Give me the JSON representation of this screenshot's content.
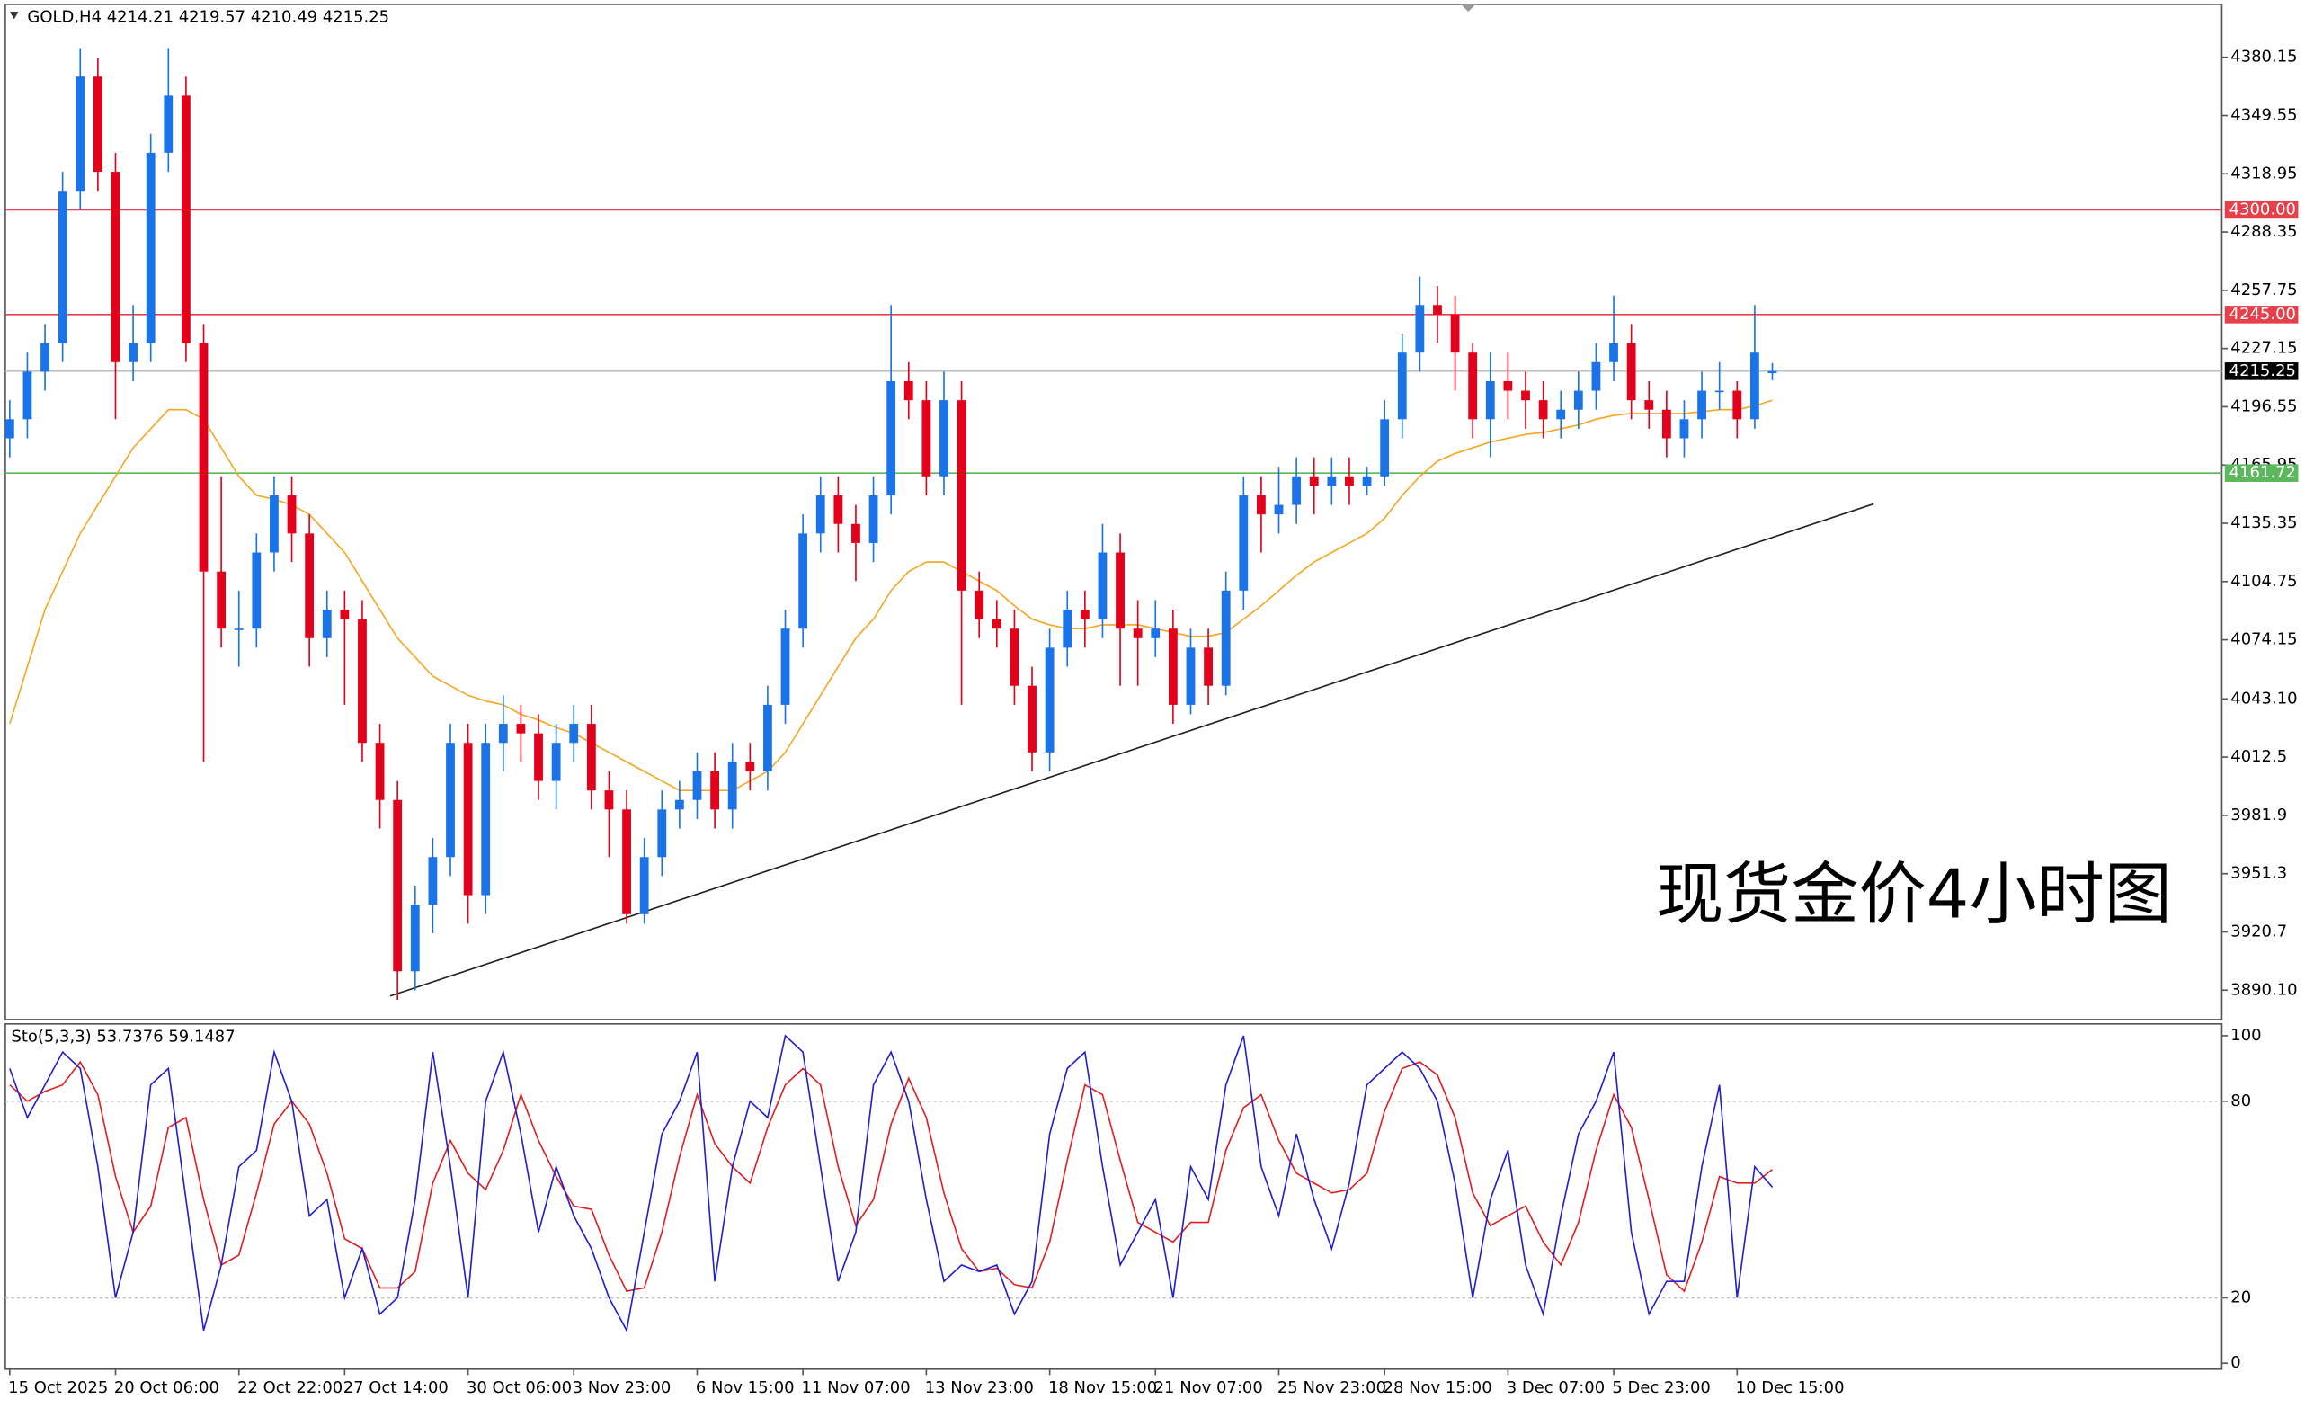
{
  "chart_data": [
    {
      "type": "candlestick",
      "title": "GOLD,H4 4214.21 4219.57 4210.49 4215.25",
      "annotation": "现货金价4小时图",
      "categories": [
        "15 Oct 2025",
        null,
        null,
        null,
        null,
        null,
        "20 Oct 06:00",
        null,
        null,
        null,
        null,
        null,
        null,
        "22 Oct 22:00",
        null,
        null,
        null,
        null,
        null,
        "27 Oct 14:00",
        null,
        null,
        null,
        null,
        null,
        null,
        "30 Oct 06:00",
        null,
        null,
        null,
        null,
        null,
        "3 Nov 23:00",
        null,
        null,
        null,
        null,
        null,
        null,
        "6 Nov 15:00",
        null,
        null,
        null,
        null,
        null,
        "11 Nov 07:00",
        null,
        null,
        null,
        null,
        null,
        null,
        "13 Nov 23:00",
        null,
        null,
        null,
        null,
        null,
        null,
        "18 Nov 15:00",
        null,
        null,
        null,
        null,
        null,
        "21 Nov 07:00",
        null,
        null,
        null,
        null,
        null,
        null,
        "25 Nov 23:00",
        null,
        null,
        null,
        null,
        null,
        "28 Nov 15:00",
        null,
        null,
        null,
        null,
        null,
        null,
        "3 Dec 07:00",
        null,
        null,
        null,
        null,
        null,
        "5 Dec 23:00",
        null,
        null,
        null,
        null,
        null,
        null,
        "10 Dec 15:00",
        null,
        null
      ],
      "open": [
        4180,
        4190,
        4215,
        4230,
        4310,
        4370,
        4320,
        4220,
        4230,
        4330,
        4360,
        4230,
        4110,
        4080,
        4080,
        4120,
        4150,
        4130,
        4075,
        4090,
        4085,
        4020,
        3990,
        3900,
        3935,
        3960,
        4020,
        3940,
        4020,
        4030,
        4025,
        4000,
        4020,
        4030,
        3995,
        3985,
        3930,
        3960,
        3985,
        3990,
        4005,
        3985,
        4010,
        4005,
        4040,
        4080,
        4130,
        4150,
        4135,
        4125,
        4150,
        4210,
        4200,
        4160,
        4200,
        4100,
        4085,
        4080,
        4050,
        4015,
        4070,
        4090,
        4085,
        4120,
        4080,
        4075,
        4080,
        4040,
        4070,
        4050,
        4100,
        4150,
        4140,
        4145,
        4160,
        4155,
        4160,
        4155,
        4160,
        4190,
        4225,
        4250,
        4245,
        4225,
        4190,
        4210,
        4205,
        4200,
        4190,
        4195,
        4205,
        4220,
        4230,
        4200,
        4195,
        4180,
        4190,
        4205,
        4205,
        4190,
        4214.21
      ],
      "high": [
        4200,
        4225,
        4240,
        4320,
        4385,
        4380,
        4330,
        4250,
        4340,
        4385,
        4370,
        4240,
        4160,
        4100,
        4130,
        4160,
        4160,
        4140,
        4100,
        4100,
        4095,
        4030,
        4000,
        3945,
        3970,
        4030,
        4030,
        4030,
        4045,
        4040,
        4035,
        4030,
        4040,
        4040,
        4005,
        3995,
        3970,
        3995,
        4000,
        4015,
        4015,
        4020,
        4020,
        4050,
        4090,
        4140,
        4160,
        4160,
        4145,
        4160,
        4250,
        4220,
        4210,
        4215,
        4210,
        4110,
        4095,
        4090,
        4060,
        4080,
        4100,
        4100,
        4135,
        4130,
        4095,
        4095,
        4090,
        4080,
        4080,
        4110,
        4160,
        4160,
        4165,
        4170,
        4170,
        4170,
        4170,
        4165,
        4200,
        4235,
        4265,
        4260,
        4255,
        4230,
        4225,
        4225,
        4215,
        4210,
        4205,
        4215,
        4230,
        4255,
        4240,
        4210,
        4205,
        4200,
        4215,
        4220,
        4210,
        4250,
        4219.57
      ],
      "low": [
        4170,
        4180,
        4205,
        4220,
        4300,
        4310,
        4190,
        4210,
        4220,
        4320,
        4220,
        4010,
        4070,
        4060,
        4070,
        4110,
        4115,
        4060,
        4065,
        4040,
        4010,
        3975,
        3885,
        3890,
        3920,
        3950,
        3925,
        3930,
        4005,
        4010,
        3990,
        3985,
        4010,
        3985,
        3960,
        3925,
        3925,
        3950,
        3975,
        3980,
        3975,
        3975,
        3995,
        3995,
        4030,
        4070,
        4120,
        4120,
        4105,
        4115,
        4140,
        4190,
        4150,
        4150,
        4040,
        4075,
        4070,
        4040,
        4005,
        4005,
        4060,
        4070,
        4075,
        4050,
        4050,
        4065,
        4030,
        4035,
        4040,
        4045,
        4090,
        4120,
        4130,
        4135,
        4140,
        4145,
        4145,
        4150,
        4155,
        4180,
        4215,
        4230,
        4205,
        4180,
        4170,
        4190,
        4185,
        4180,
        4180,
        4185,
        4195,
        4210,
        4190,
        4185,
        4170,
        4170,
        4180,
        4195,
        4180,
        4185,
        4210.49
      ],
      "close": [
        4190,
        4215,
        4230,
        4310,
        4370,
        4320,
        4220,
        4230,
        4330,
        4360,
        4230,
        4110,
        4080,
        4080,
        4120,
        4150,
        4130,
        4075,
        4090,
        4085,
        4020,
        3990,
        3900,
        3935,
        3960,
        4020,
        3940,
        4020,
        4030,
        4025,
        4000,
        4020,
        4030,
        3995,
        3985,
        3930,
        3960,
        3985,
        3990,
        4005,
        3985,
        4010,
        4005,
        4040,
        4080,
        4130,
        4150,
        4135,
        4125,
        4150,
        4210,
        4200,
        4160,
        4200,
        4100,
        4085,
        4080,
        4050,
        4015,
        4070,
        4090,
        4085,
        4120,
        4080,
        4075,
        4080,
        4040,
        4070,
        4050,
        4100,
        4150,
        4140,
        4145,
        4160,
        4155,
        4160,
        4155,
        4160,
        4190,
        4225,
        4250,
        4245,
        4225,
        4190,
        4210,
        4205,
        4200,
        4190,
        4195,
        4205,
        4220,
        4230,
        4200,
        4195,
        4180,
        4190,
        4205,
        4205,
        4190,
        4225,
        4215.25
      ],
      "up_color": "#1a73e8",
      "down_color": "#e3001b",
      "ma": {
        "color": "#f5a623",
        "values": [
          4030,
          4060,
          4090,
          4110,
          4130,
          4145,
          4160,
          4175,
          4185,
          4195,
          4195,
          4190,
          4175,
          4160,
          4150,
          4148,
          4145,
          4140,
          4130,
          4120,
          4105,
          4090,
          4075,
          4065,
          4055,
          4050,
          4045,
          4042,
          4040,
          4035,
          4032,
          4028,
          4025,
          4020,
          4015,
          4010,
          4005,
          4000,
          3995,
          3995,
          3995,
          3995,
          4000,
          4005,
          4015,
          4030,
          4045,
          4060,
          4075,
          4085,
          4100,
          4110,
          4115,
          4115,
          4110,
          4105,
          4100,
          4092,
          4085,
          4082,
          4080,
          4080,
          4082,
          4082,
          4082,
          4080,
          4078,
          4076,
          4076,
          4078,
          4085,
          4092,
          4100,
          4108,
          4115,
          4120,
          4125,
          4130,
          4138,
          4150,
          4160,
          4168,
          4172,
          4175,
          4178,
          4180,
          4182,
          4183,
          4185,
          4187,
          4190,
          4192,
          4193,
          4193,
          4193,
          4193,
          4194,
          4195,
          4195,
          4197,
          4200
        ]
      },
      "levels": [
        {
          "value": 4300,
          "label": "4300.00",
          "color": "#e8404a"
        },
        {
          "value": 4245,
          "label": "4245.00",
          "color": "#e8404a"
        },
        {
          "value": 4161.72,
          "label": "4161.72",
          "color": "#5cb85c"
        },
        {
          "value": 4215.25,
          "label": "4215.25",
          "color": "#000000"
        }
      ],
      "ylim": [
        3874.67,
        4407.93
      ],
      "yticks": [
        4380.15,
        4349.55,
        4318.95,
        4288.35,
        4257.75,
        4227.15,
        4196.55,
        4165.95,
        4135.35,
        4104.75,
        4074.15,
        {
          "value": 4043.1,
          "label": "4043.10"
        },
        4012.5,
        3981.9,
        3951.3,
        3920.7,
        {
          "value": 3890.1,
          "label": "3890.10"
        }
      ]
    },
    {
      "type": "stochastic",
      "title": "Sto(5,3,3) 53.7376 59.1487",
      "series": [
        {
          "color": "#2020d0",
          "values": [
            90,
            75,
            85,
            95,
            90,
            60,
            20,
            40,
            85,
            90,
            50,
            10,
            30,
            60,
            65,
            95,
            80,
            45,
            50,
            20,
            35,
            15,
            20,
            50,
            95,
            60,
            20,
            80,
            95,
            70,
            40,
            60,
            45,
            35,
            20,
            10,
            40,
            70,
            80,
            95,
            25,
            60,
            80,
            75,
            100,
            95,
            60,
            25,
            40,
            85,
            95,
            80,
            50,
            25,
            30,
            28,
            30,
            15,
            25,
            70,
            90,
            95,
            60,
            30,
            40,
            50,
            20,
            60,
            50,
            85,
            100,
            60,
            45,
            70,
            50,
            35,
            55,
            85,
            90,
            95,
            90,
            80,
            55,
            20,
            50,
            65,
            30,
            15,
            45,
            70,
            80,
            95,
            40,
            15,
            25,
            25,
            60,
            85,
            20,
            60,
            53.7376
          ]
        },
        {
          "color": "#e02020",
          "values": [
            85,
            80,
            83,
            85,
            92,
            82,
            57,
            40,
            48,
            72,
            75,
            50,
            30,
            33,
            52,
            73,
            80,
            73,
            58,
            38,
            35,
            23,
            23,
            28,
            55,
            68,
            58,
            53,
            65,
            82,
            68,
            57,
            48,
            47,
            33,
            22,
            23,
            40,
            63,
            82,
            67,
            60,
            55,
            72,
            85,
            90,
            85,
            60,
            42,
            50,
            73,
            87,
            75,
            52,
            35,
            28,
            29,
            24,
            23,
            37,
            62,
            85,
            82,
            62,
            43,
            40,
            37,
            43,
            43,
            65,
            78,
            82,
            68,
            58,
            55,
            52,
            53,
            58,
            77,
            90,
            92,
            88,
            75,
            52,
            42,
            45,
            48,
            37,
            30,
            43,
            65,
            82,
            72,
            50,
            27,
            22,
            37,
            57,
            55,
            55,
            59.1487
          ]
        }
      ],
      "ylim": [
        -1.8,
        103.6
      ],
      "yticks": [
        0,
        20,
        80,
        100
      ],
      "grid_at": [
        20,
        80
      ]
    }
  ]
}
